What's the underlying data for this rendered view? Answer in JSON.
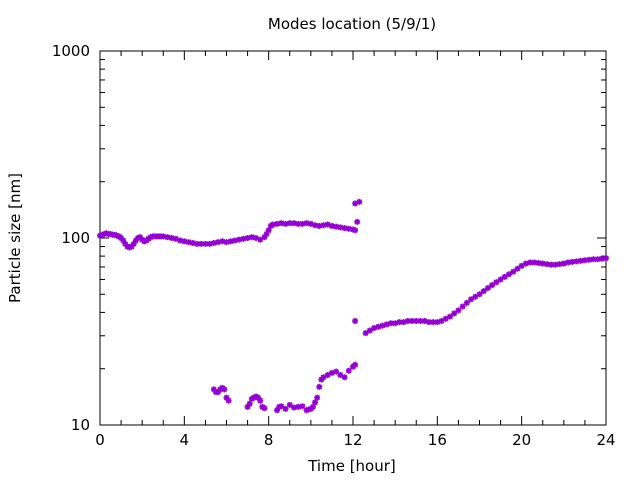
{
  "chart_data": {
    "type": "scatter",
    "title": "Modes location (5/9/1)",
    "xlabel": "Time [hour]",
    "ylabel": "Particle size [nm]",
    "xlim": [
      0,
      24
    ],
    "ylim": [
      10,
      1000
    ],
    "yscale": "log",
    "grid": false,
    "legend": "none",
    "x_ticks": [
      "0",
      "4",
      "8",
      "12",
      "16",
      "20",
      "24"
    ],
    "y_ticks": [
      "10",
      "100",
      "1000"
    ],
    "marker_color": "#9400D3",
    "series": [
      {
        "points": [
          [
            0.0,
            103
          ],
          [
            0.1,
            104
          ],
          [
            0.2,
            105
          ],
          [
            0.3,
            106
          ],
          [
            0.4,
            105
          ],
          [
            0.5,
            105
          ],
          [
            0.6,
            104
          ],
          [
            0.7,
            104
          ],
          [
            0.8,
            103
          ],
          [
            0.9,
            102
          ],
          [
            1.0,
            100
          ],
          [
            1.1,
            97
          ],
          [
            1.2,
            93
          ],
          [
            1.3,
            90
          ],
          [
            1.4,
            89
          ],
          [
            1.5,
            90
          ],
          [
            1.6,
            93
          ],
          [
            1.7,
            97
          ],
          [
            1.8,
            100
          ],
          [
            1.9,
            101
          ],
          [
            2.0,
            98
          ],
          [
            2.1,
            96
          ],
          [
            2.2,
            97
          ],
          [
            2.3,
            99
          ],
          [
            2.4,
            101
          ],
          [
            2.5,
            102
          ],
          [
            2.6,
            102
          ],
          [
            2.7,
            102
          ],
          [
            2.8,
            102
          ],
          [
            2.9,
            102
          ],
          [
            3.0,
            102
          ],
          [
            3.2,
            101
          ],
          [
            3.4,
            100
          ],
          [
            3.6,
            99
          ],
          [
            3.8,
            97
          ],
          [
            4.0,
            96
          ],
          [
            4.2,
            95
          ],
          [
            4.4,
            94
          ],
          [
            4.6,
            93
          ],
          [
            4.8,
            93
          ],
          [
            5.0,
            93
          ],
          [
            5.2,
            93
          ],
          [
            5.4,
            94
          ],
          [
            5.6,
            95
          ],
          [
            5.8,
            96
          ],
          [
            6.0,
            95
          ],
          [
            6.2,
            96
          ],
          [
            6.4,
            97
          ],
          [
            6.6,
            98
          ],
          [
            6.8,
            99
          ],
          [
            7.0,
            100
          ],
          [
            7.2,
            101
          ],
          [
            7.4,
            100
          ],
          [
            7.6,
            98
          ],
          [
            7.8,
            101
          ],
          [
            7.9,
            105
          ],
          [
            8.0,
            110
          ],
          [
            8.1,
            116
          ],
          [
            8.2,
            118
          ],
          [
            8.4,
            119
          ],
          [
            8.6,
            120
          ],
          [
            8.8,
            119
          ],
          [
            9.0,
            120
          ],
          [
            9.2,
            120
          ],
          [
            9.4,
            119
          ],
          [
            9.6,
            119
          ],
          [
            9.8,
            120
          ],
          [
            10.0,
            119
          ],
          [
            10.2,
            117
          ],
          [
            10.4,
            116
          ],
          [
            10.6,
            117
          ],
          [
            10.8,
            118
          ],
          [
            11.0,
            116
          ],
          [
            11.2,
            115
          ],
          [
            11.4,
            114
          ],
          [
            11.6,
            113
          ],
          [
            11.8,
            112
          ],
          [
            12.0,
            111
          ],
          [
            12.1,
            110
          ]
        ]
      },
      {
        "points": [
          [
            12.1,
            153
          ],
          [
            12.3,
            156
          ],
          [
            12.2,
            122
          ],
          [
            12.1,
            36
          ],
          [
            12.6,
            31
          ],
          [
            12.8,
            32
          ],
          [
            13.0,
            33
          ],
          [
            13.2,
            33.5
          ],
          [
            13.4,
            34
          ],
          [
            13.6,
            34.5
          ],
          [
            13.8,
            35
          ],
          [
            14.0,
            35
          ],
          [
            14.2,
            35.5
          ],
          [
            14.4,
            35.5
          ],
          [
            14.6,
            36
          ],
          [
            14.8,
            36
          ],
          [
            15.0,
            36
          ],
          [
            15.2,
            36
          ],
          [
            15.4,
            36
          ],
          [
            15.6,
            35.5
          ],
          [
            15.8,
            35.5
          ],
          [
            16.0,
            35.5
          ],
          [
            16.2,
            36
          ],
          [
            16.4,
            37
          ],
          [
            16.6,
            38
          ],
          [
            16.8,
            39.5
          ],
          [
            17.0,
            41
          ],
          [
            17.2,
            43
          ],
          [
            17.4,
            45
          ],
          [
            17.6,
            47
          ],
          [
            17.8,
            48.5
          ],
          [
            18.0,
            50
          ],
          [
            18.2,
            52
          ],
          [
            18.4,
            54
          ],
          [
            18.6,
            56
          ],
          [
            18.8,
            58
          ],
          [
            19.0,
            60
          ],
          [
            19.2,
            62
          ],
          [
            19.4,
            64
          ],
          [
            19.6,
            66
          ],
          [
            19.8,
            68.5
          ],
          [
            20.0,
            71
          ],
          [
            20.2,
            73
          ],
          [
            20.4,
            74
          ],
          [
            20.6,
            74
          ],
          [
            20.8,
            73.5
          ],
          [
            21.0,
            73
          ],
          [
            21.2,
            72.5
          ],
          [
            21.4,
            72
          ],
          [
            21.6,
            72
          ],
          [
            21.8,
            72.5
          ],
          [
            22.0,
            73
          ],
          [
            22.2,
            74
          ],
          [
            22.4,
            74.5
          ],
          [
            22.6,
            75
          ],
          [
            22.8,
            75.5
          ],
          [
            23.0,
            76
          ],
          [
            23.2,
            76.5
          ],
          [
            23.4,
            77
          ],
          [
            23.6,
            77
          ],
          [
            23.8,
            77.5
          ],
          [
            24.0,
            78
          ]
        ]
      },
      {
        "points": [
          [
            5.4,
            15.5
          ],
          [
            5.5,
            15
          ],
          [
            5.6,
            15
          ],
          [
            5.7,
            15.5
          ],
          [
            5.8,
            15.8
          ],
          [
            5.9,
            15.5
          ],
          [
            6.0,
            14
          ],
          [
            6.1,
            13.5
          ],
          [
            7.0,
            12.5
          ],
          [
            7.1,
            13
          ],
          [
            7.2,
            13.8
          ],
          [
            7.3,
            14
          ],
          [
            7.4,
            14.2
          ],
          [
            7.5,
            14
          ],
          [
            7.6,
            13.5
          ],
          [
            7.7,
            12.5
          ],
          [
            7.8,
            12.3
          ],
          [
            8.4,
            12
          ],
          [
            8.5,
            12.5
          ],
          [
            8.6,
            12.6
          ],
          [
            8.8,
            12.2
          ],
          [
            9.0,
            12.8
          ],
          [
            9.2,
            12.4
          ],
          [
            9.4,
            12.5
          ],
          [
            9.6,
            12.6
          ],
          [
            9.8,
            12
          ],
          [
            9.9,
            12.1
          ],
          [
            10.0,
            12.2
          ],
          [
            10.1,
            12.5
          ],
          [
            10.2,
            13.2
          ],
          [
            10.3,
            14
          ],
          [
            10.4,
            16
          ],
          [
            10.5,
            17.5
          ],
          [
            10.6,
            18
          ],
          [
            10.8,
            18.5
          ],
          [
            11.0,
            19
          ],
          [
            11.2,
            19.3
          ],
          [
            11.4,
            18.5
          ],
          [
            11.6,
            18
          ],
          [
            11.8,
            19.5
          ],
          [
            12.0,
            20.5
          ],
          [
            12.1,
            21
          ]
        ]
      }
    ]
  }
}
